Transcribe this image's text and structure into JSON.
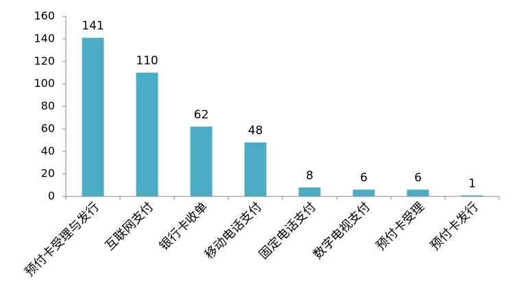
{
  "chart_data": {
    "type": "bar",
    "categories": [
      "预付卡受理与发行",
      "互联网支付",
      "银行卡收单",
      "移动电话支付",
      "固定电话支付",
      "数字电视支付",
      "预付卡受理",
      "预付卡发行"
    ],
    "values": [
      141,
      110,
      62,
      48,
      8,
      6,
      6,
      1
    ],
    "color": "#4bacc6",
    "ylim": [
      0,
      160
    ],
    "yticks": [
      0,
      20,
      40,
      60,
      80,
      100,
      120,
      140,
      160
    ],
    "grid": false
  }
}
